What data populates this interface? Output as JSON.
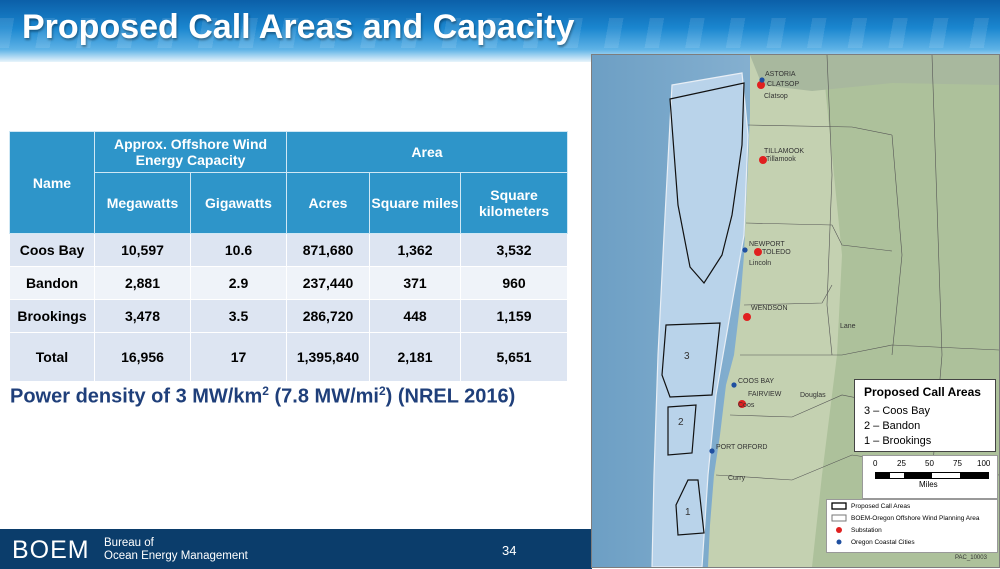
{
  "slide": {
    "title": "Proposed Call Areas and Capacity",
    "page_number": "34"
  },
  "table": {
    "header": {
      "name": "Name",
      "capacity_group": "Approx. Offshore Wind Energy Capacity",
      "area_group": "Area",
      "megawatts": "Megawatts",
      "gigawatts": "Gigawatts",
      "acres": "Acres",
      "square_miles": "Square miles",
      "square_km": "Square kilometers"
    },
    "rows": [
      {
        "name": "Coos Bay",
        "mw": "10,597",
        "gw": "10.6",
        "acres": "871,680",
        "sqmi": "1,362",
        "sqkm": "3,532"
      },
      {
        "name": "Bandon",
        "mw": "2,881",
        "gw": "2.9",
        "acres": "237,440",
        "sqmi": "371",
        "sqkm": "960"
      },
      {
        "name": "Brookings",
        "mw": "3,478",
        "gw": "3.5",
        "acres": "286,720",
        "sqmi": "448",
        "sqkm": "1,159"
      },
      {
        "name": "Total",
        "mw": "16,956",
        "gw": "17",
        "acres": "1,395,840",
        "sqmi": "2,181",
        "sqkm": "5,651"
      }
    ]
  },
  "power_density": {
    "prefix": "Power density of 3 MW/km",
    "sup1": "2",
    "middle": " (7.8 MW/mi",
    "sup2": "2",
    "suffix": ") (NREL 2016)"
  },
  "footer": {
    "logo_text": "BOEM",
    "bureau_line1": "Bureau of",
    "bureau_line2": "Ocean Energy Management"
  },
  "map": {
    "labels": {
      "astoria": "ASTORIA",
      "clatsop_sub": "CLATSOP",
      "clatsop": "Clatsop",
      "tillamook_sub": "TILLAMOOK",
      "tillamook": "Tillamook",
      "newport": "NEWPORT",
      "toledo": "TOLEDO",
      "lincoln": "Lincoln",
      "wendson": "WENDSON",
      "lane": "Lane",
      "coos_bay": "COOS BAY",
      "fairview": "FAIRVIEW",
      "coos": "Coos",
      "douglas": "Douglas",
      "port_orford": "PORT ORFORD",
      "curry": "Curry",
      "area_3": "3",
      "area_2": "2",
      "area_1": "1"
    },
    "call_areas_box": {
      "title": "Proposed Call Areas",
      "items": [
        "3 – Coos Bay",
        "2 – Bandon",
        "1 – Brookings"
      ]
    },
    "scale": {
      "ticks": [
        "0",
        "25",
        "50",
        "75",
        "100"
      ],
      "unit": "Miles"
    },
    "legend": {
      "items": [
        "Proposed Call Areas",
        "BOEM-Oregon Offshore Wind Planning Area",
        "Substation",
        "Oregon Coastal Cities"
      ],
      "colors": {
        "substation": "#e0201f",
        "city": "#1f4fa0"
      }
    },
    "map_code": "PAC_10003"
  }
}
